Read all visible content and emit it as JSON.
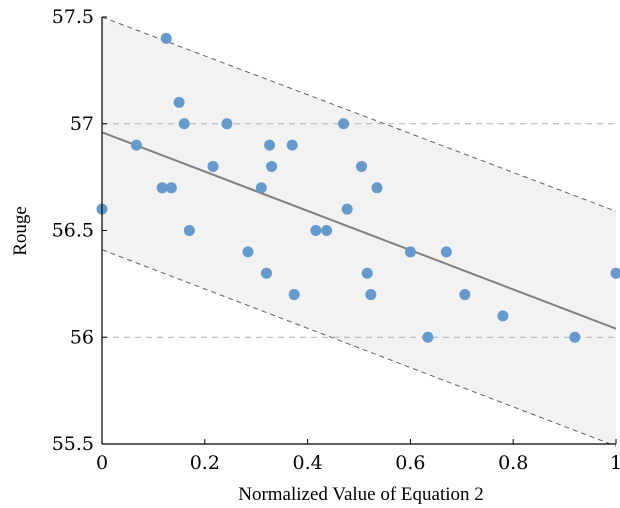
{
  "chart_data": {
    "type": "scatter",
    "xlabel": "Normalized Value of Equation 2",
    "ylabel": "Rouge",
    "xlim": [
      0,
      1
    ],
    "ylim": [
      55.5,
      57.5
    ],
    "x_ticks": [
      0,
      0.2,
      0.4,
      0.6,
      0.8,
      1
    ],
    "x_tick_labels": [
      "0",
      "0.2",
      "0.4",
      "0.6",
      "0.8",
      "1"
    ],
    "y_ticks": [
      55.5,
      56,
      56.5,
      57,
      57.5
    ],
    "y_tick_labels": [
      "55.5",
      "56",
      "56.5",
      "57",
      "57.5"
    ],
    "reference_lines_y": [
      56,
      57
    ],
    "grid": false,
    "points": [
      {
        "x": 0.0,
        "y": 56.6
      },
      {
        "x": 0.067,
        "y": 56.9
      },
      {
        "x": 0.117,
        "y": 56.7
      },
      {
        "x": 0.125,
        "y": 57.4
      },
      {
        "x": 0.135,
        "y": 56.7
      },
      {
        "x": 0.15,
        "y": 57.1
      },
      {
        "x": 0.16,
        "y": 57.0
      },
      {
        "x": 0.17,
        "y": 56.5
      },
      {
        "x": 0.216,
        "y": 56.8
      },
      {
        "x": 0.243,
        "y": 57.0
      },
      {
        "x": 0.284,
        "y": 56.4
      },
      {
        "x": 0.31,
        "y": 56.7
      },
      {
        "x": 0.32,
        "y": 56.3
      },
      {
        "x": 0.326,
        "y": 56.9
      },
      {
        "x": 0.33,
        "y": 56.8
      },
      {
        "x": 0.37,
        "y": 56.9
      },
      {
        "x": 0.374,
        "y": 56.2
      },
      {
        "x": 0.416,
        "y": 56.5
      },
      {
        "x": 0.437,
        "y": 56.5
      },
      {
        "x": 0.47,
        "y": 57.0
      },
      {
        "x": 0.477,
        "y": 56.6
      },
      {
        "x": 0.505,
        "y": 56.8
      },
      {
        "x": 0.516,
        "y": 56.3
      },
      {
        "x": 0.523,
        "y": 56.2
      },
      {
        "x": 0.535,
        "y": 56.7
      },
      {
        "x": 0.6,
        "y": 56.4
      },
      {
        "x": 0.634,
        "y": 56.0
      },
      {
        "x": 0.67,
        "y": 56.4
      },
      {
        "x": 0.706,
        "y": 56.2
      },
      {
        "x": 0.78,
        "y": 56.1
      },
      {
        "x": 0.92,
        "y": 56.0
      },
      {
        "x": 1.0,
        "y": 56.3
      }
    ],
    "fit_line": {
      "y_at_x0": 56.96,
      "y_at_x1": 56.04
    },
    "band_upper": {
      "y_at_x0": 57.5,
      "y_at_x1": 56.59
    },
    "band_lower": {
      "y_at_x0": 56.41,
      "y_at_x1": 55.49
    },
    "colors": {
      "points": "#6699cc",
      "fit_line": "#808080",
      "band_fill": "#f2f2f2",
      "band_border": "#606060",
      "reference_line": "#b0b0b0",
      "axes": "#000000"
    }
  }
}
